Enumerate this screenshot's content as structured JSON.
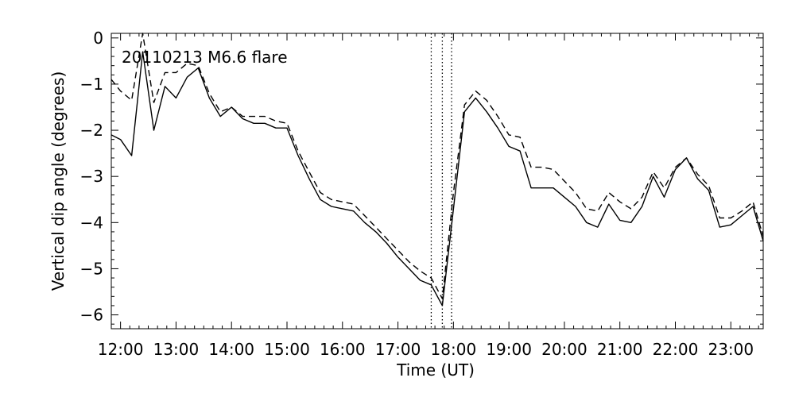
{
  "chart_data": {
    "type": "line",
    "title": "",
    "annotation": "20110213 M6.6 flare",
    "xlabel": "Time (UT)",
    "ylabel": "Vertical dip angle (degrees)",
    "xlim": [
      "11:50",
      "23:35"
    ],
    "ylim": [
      -6.3,
      0.1
    ],
    "x_ticks": [
      "12:00",
      "13:00",
      "14:00",
      "15:00",
      "16:00",
      "17:00",
      "18:00",
      "19:00",
      "20:00",
      "21:00",
      "22:00",
      "23:00"
    ],
    "y_ticks": [
      0,
      -1,
      -2,
      -3,
      -4,
      -5,
      -6
    ],
    "grid": false,
    "legend": "none",
    "vertical_markers": [
      "17:36",
      "17:48",
      "17:58"
    ],
    "series": [
      {
        "style": "solid",
        "x": [
          "11:50",
          "12:00",
          "12:12",
          "12:24",
          "12:36",
          "12:48",
          "13:00",
          "13:12",
          "13:24",
          "13:36",
          "13:48",
          "14:00",
          "14:12",
          "14:24",
          "14:36",
          "14:48",
          "15:00",
          "15:12",
          "15:24",
          "15:36",
          "15:48",
          "16:00",
          "16:12",
          "16:24",
          "16:36",
          "16:48",
          "17:00",
          "17:12",
          "17:24",
          "17:36",
          "17:48",
          "18:00",
          "18:12",
          "18:24",
          "18:36",
          "18:48",
          "19:00",
          "19:12",
          "19:24",
          "19:36",
          "19:48",
          "20:00",
          "20:12",
          "20:24",
          "20:36",
          "20:48",
          "21:00",
          "21:12",
          "21:24",
          "21:36",
          "21:48",
          "22:00",
          "22:12",
          "22:24",
          "22:36",
          "22:48",
          "23:00",
          "23:12",
          "23:24",
          "23:35"
        ],
        "y": [
          -2.1,
          -2.2,
          -2.55,
          -0.3,
          -2.0,
          -1.05,
          -1.3,
          -0.85,
          -0.65,
          -1.3,
          -1.7,
          -1.5,
          -1.75,
          -1.85,
          -1.85,
          -1.95,
          -1.95,
          -2.55,
          -3.05,
          -3.5,
          -3.65,
          -3.7,
          -3.75,
          -4.0,
          -4.2,
          -4.45,
          -4.75,
          -5.0,
          -5.25,
          -5.35,
          -5.8,
          -3.7,
          -1.6,
          -1.3,
          -1.6,
          -1.95,
          -2.35,
          -2.45,
          -3.25,
          -3.25,
          -3.25,
          -3.45,
          -3.65,
          -4.0,
          -4.1,
          -3.6,
          -3.95,
          -4.0,
          -3.65,
          -3.0,
          -3.45,
          -2.85,
          -2.6,
          -3.05,
          -3.3,
          -4.1,
          -4.05,
          -3.85,
          -3.65,
          -4.4
        ]
      },
      {
        "style": "dashed",
        "x": [
          "11:50",
          "12:00",
          "12:12",
          "12:24",
          "12:36",
          "12:48",
          "13:00",
          "13:12",
          "13:24",
          "13:36",
          "13:48",
          "14:00",
          "14:12",
          "14:24",
          "14:36",
          "14:48",
          "15:00",
          "15:12",
          "15:24",
          "15:36",
          "15:48",
          "16:00",
          "16:12",
          "16:24",
          "16:36",
          "16:48",
          "17:00",
          "17:12",
          "17:24",
          "17:36",
          "17:48",
          "18:00",
          "18:12",
          "18:24",
          "18:36",
          "18:48",
          "19:00",
          "19:12",
          "19:24",
          "19:36",
          "19:48",
          "20:00",
          "20:12",
          "20:24",
          "20:36",
          "20:48",
          "21:00",
          "21:12",
          "21:24",
          "21:36",
          "21:48",
          "22:00",
          "22:12",
          "22:24",
          "22:36",
          "22:48",
          "23:00",
          "23:12",
          "23:24",
          "23:35"
        ],
        "y": [
          -0.9,
          -1.15,
          -1.35,
          0.1,
          -1.4,
          -0.75,
          -0.75,
          -0.55,
          -0.6,
          -1.2,
          -1.6,
          -1.5,
          -1.7,
          -1.7,
          -1.7,
          -1.8,
          -1.85,
          -2.45,
          -2.9,
          -3.35,
          -3.5,
          -3.55,
          -3.6,
          -3.85,
          -4.1,
          -4.35,
          -4.6,
          -4.85,
          -5.05,
          -5.2,
          -5.65,
          -3.35,
          -1.45,
          -1.15,
          -1.35,
          -1.7,
          -2.1,
          -2.15,
          -2.8,
          -2.8,
          -2.85,
          -3.1,
          -3.35,
          -3.7,
          -3.75,
          -3.35,
          -3.55,
          -3.7,
          -3.45,
          -2.9,
          -3.25,
          -2.8,
          -2.6,
          -2.95,
          -3.2,
          -3.9,
          -3.9,
          -3.75,
          -3.55,
          -4.3
        ]
      }
    ]
  }
}
